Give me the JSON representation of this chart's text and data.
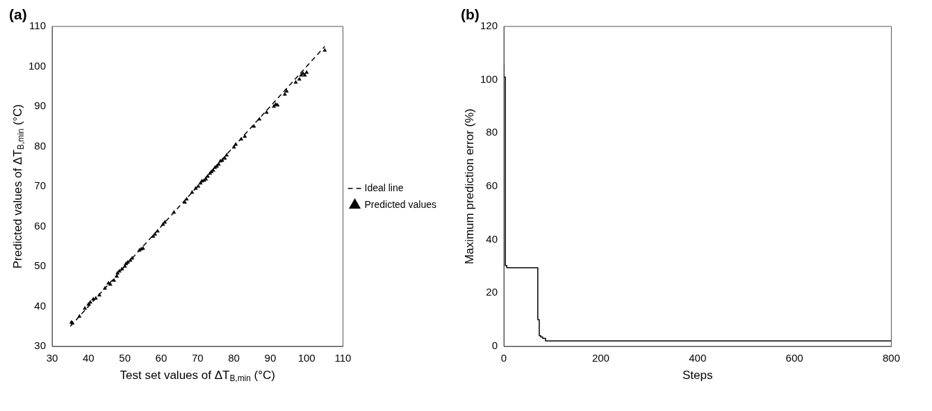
{
  "chart_data": [
    {
      "type": "scatter",
      "title": "(a)",
      "xlabel": "Test set values of ΔT$_{B,min}$ (°C)",
      "ylabel": "Predicted values of ΔT$_{B,min}$ (°C)",
      "xlim": [
        30,
        110
      ],
      "xticks": [
        30,
        40,
        50,
        60,
        70,
        80,
        90,
        100,
        110
      ],
      "ylim": [
        30,
        110
      ],
      "yticks": [
        30,
        40,
        50,
        60,
        70,
        80,
        90,
        100,
        110
      ],
      "grid": false,
      "legend": "right",
      "series": [
        {
          "name": "Ideal line",
          "type": "line",
          "color": "#000000",
          "line_style": "dashed",
          "marker": "none",
          "x": [
            35,
            105
          ],
          "values": [
            35,
            105
          ]
        },
        {
          "name": "Predicted values",
          "type": "scatter",
          "color": "#000000",
          "marker": "triangle",
          "x": [
            35.3,
            35.6,
            37.5,
            39,
            40,
            40.5,
            41.3,
            42,
            43,
            44.5,
            45.5,
            46,
            47,
            47.8,
            48,
            48.5,
            49.2,
            50,
            50.3,
            50.8,
            51.5,
            52,
            54,
            54.5,
            55,
            57.8,
            58.3,
            59,
            60.5,
            61,
            63.5,
            66.5,
            67,
            68.5,
            69.5,
            70.2,
            70.8,
            71.2,
            71.8,
            72.3,
            72.8,
            73.4,
            73.8,
            74.3,
            74.8,
            75.3,
            75.8,
            76.3,
            76.8,
            77.5,
            78,
            80,
            80.5,
            82,
            83,
            85.5,
            87,
            89,
            91,
            91.5,
            92,
            94,
            94.5,
            97,
            98,
            98.5,
            99,
            99.5,
            100,
            105
          ],
          "values": [
            36,
            35.8,
            37.5,
            39.5,
            40.5,
            41,
            41.8,
            42,
            42.8,
            44.5,
            45.8,
            45.5,
            46.5,
            47.5,
            48.3,
            48.8,
            49.3,
            50,
            50.6,
            51,
            51.5,
            52,
            54,
            54.3,
            54.5,
            57.5,
            58,
            58.8,
            60.5,
            61,
            63.5,
            66,
            66.8,
            68.5,
            69.5,
            70,
            70.8,
            71.3,
            71.5,
            71.8,
            72.5,
            73.2,
            73.6,
            74,
            74.7,
            75,
            75.5,
            76.3,
            76.5,
            77,
            77.8,
            79.8,
            80.5,
            81.8,
            82.5,
            85,
            86.8,
            88.5,
            90,
            90.5,
            90.3,
            93,
            93.8,
            96,
            96.8,
            97.8,
            98.2,
            97.8,
            98.5,
            104
          ]
        }
      ]
    },
    {
      "type": "step",
      "title": "(b)",
      "xlabel": "Steps",
      "ylabel": "Maximum prediction error (%)",
      "xlim": [
        0,
        800
      ],
      "xticks": [
        0,
        200,
        400,
        600,
        800
      ],
      "ylim": [
        0,
        120
      ],
      "yticks": [
        0,
        20,
        40,
        60,
        80,
        100,
        120
      ],
      "grid": false,
      "legend": false,
      "marker": "none",
      "line_style": "solid",
      "color": "#000000",
      "x": [
        0,
        3,
        6,
        70,
        73,
        76,
        80,
        86,
        133,
        800
      ],
      "values": [
        106,
        101,
        30.3,
        29.5,
        10,
        4,
        3.5,
        3,
        2,
        2
      ]
    }
  ]
}
